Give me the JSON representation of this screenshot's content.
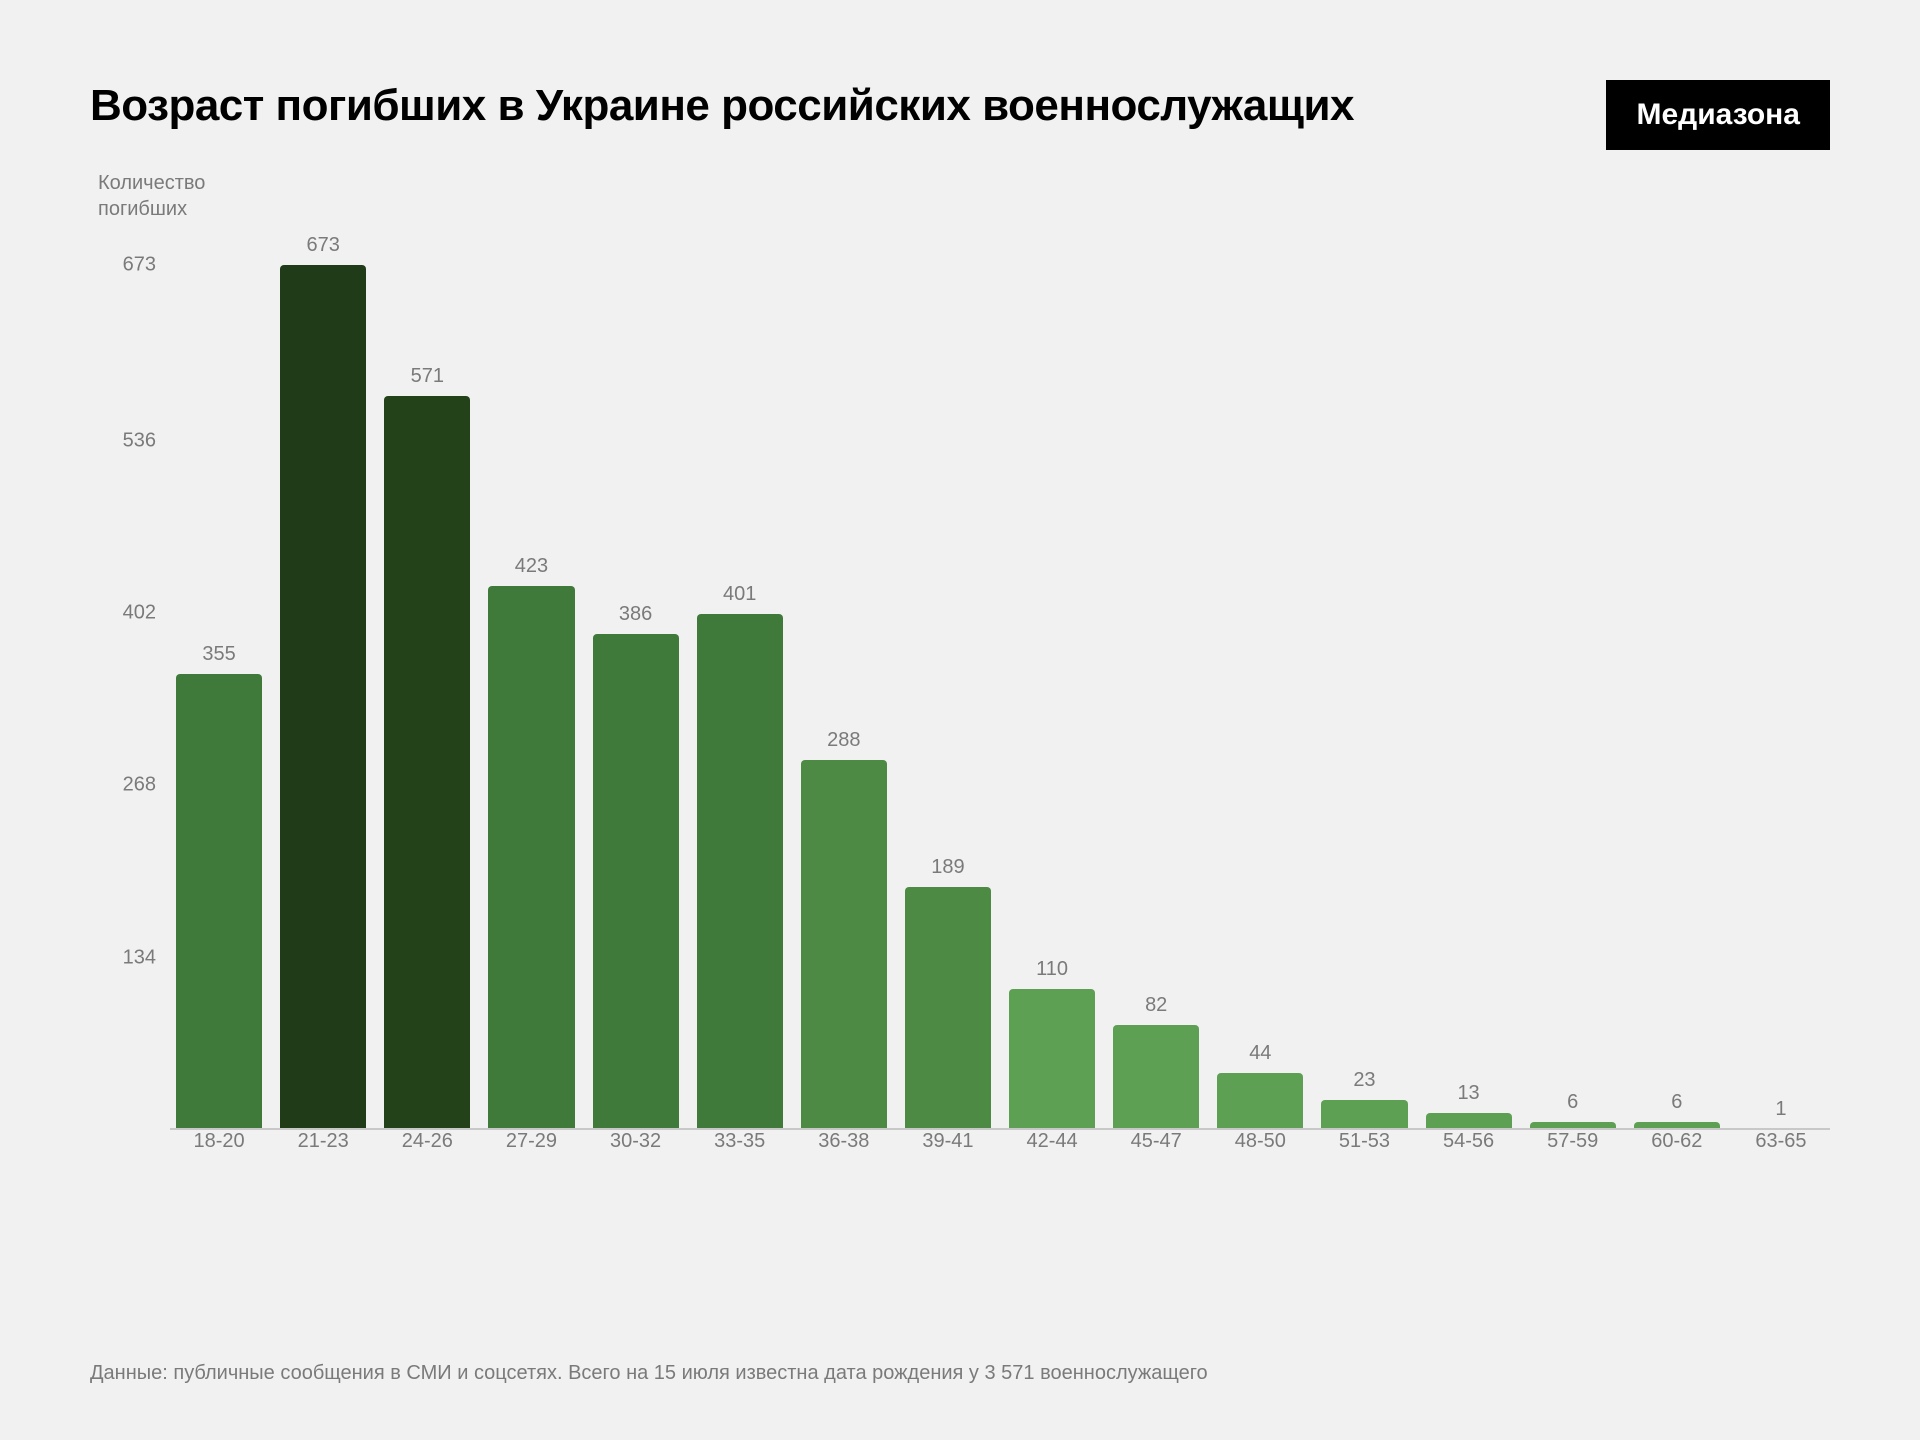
{
  "title": "Возраст погибших в Украине российских военнослужащих",
  "logo": "Медиазона",
  "footnote": "Данные: публичные сообщения в СМИ и соцсетях. Всего на 15 июля известна дата рождения у 3 571 военнослужащего",
  "chart": {
    "type": "bar",
    "y_axis_title": "Количество\nпогибших",
    "background_color": "#f1f1f1",
    "axis_color": "#c8c8c8",
    "text_color": "#7a7a7a",
    "title_fontsize": 44,
    "label_fontsize": 20,
    "ylim": [
      0,
      700
    ],
    "y_ticks": [
      673,
      536,
      402,
      268,
      134
    ],
    "bar_width_ratio": 0.88,
    "categories": [
      "18-20",
      "21-23",
      "24-26",
      "27-29",
      "30-32",
      "33-35",
      "36-38",
      "39-41",
      "42-44",
      "45-47",
      "48-50",
      "51-53",
      "54-56",
      "57-59",
      "60-62",
      "63-65"
    ],
    "values": [
      355,
      673,
      571,
      423,
      386,
      401,
      288,
      189,
      110,
      82,
      44,
      23,
      13,
      6,
      6,
      1
    ],
    "bar_colors": [
      "#3f7a3a",
      "#1f3b17",
      "#23421a",
      "#3f7a3a",
      "#3f7a3a",
      "#3f7a3a",
      "#4d8b44",
      "#4d8b44",
      "#5da054",
      "#5da054",
      "#5da054",
      "#5da054",
      "#5da054",
      "#5da054",
      "#5da054",
      "#5da054"
    ]
  }
}
